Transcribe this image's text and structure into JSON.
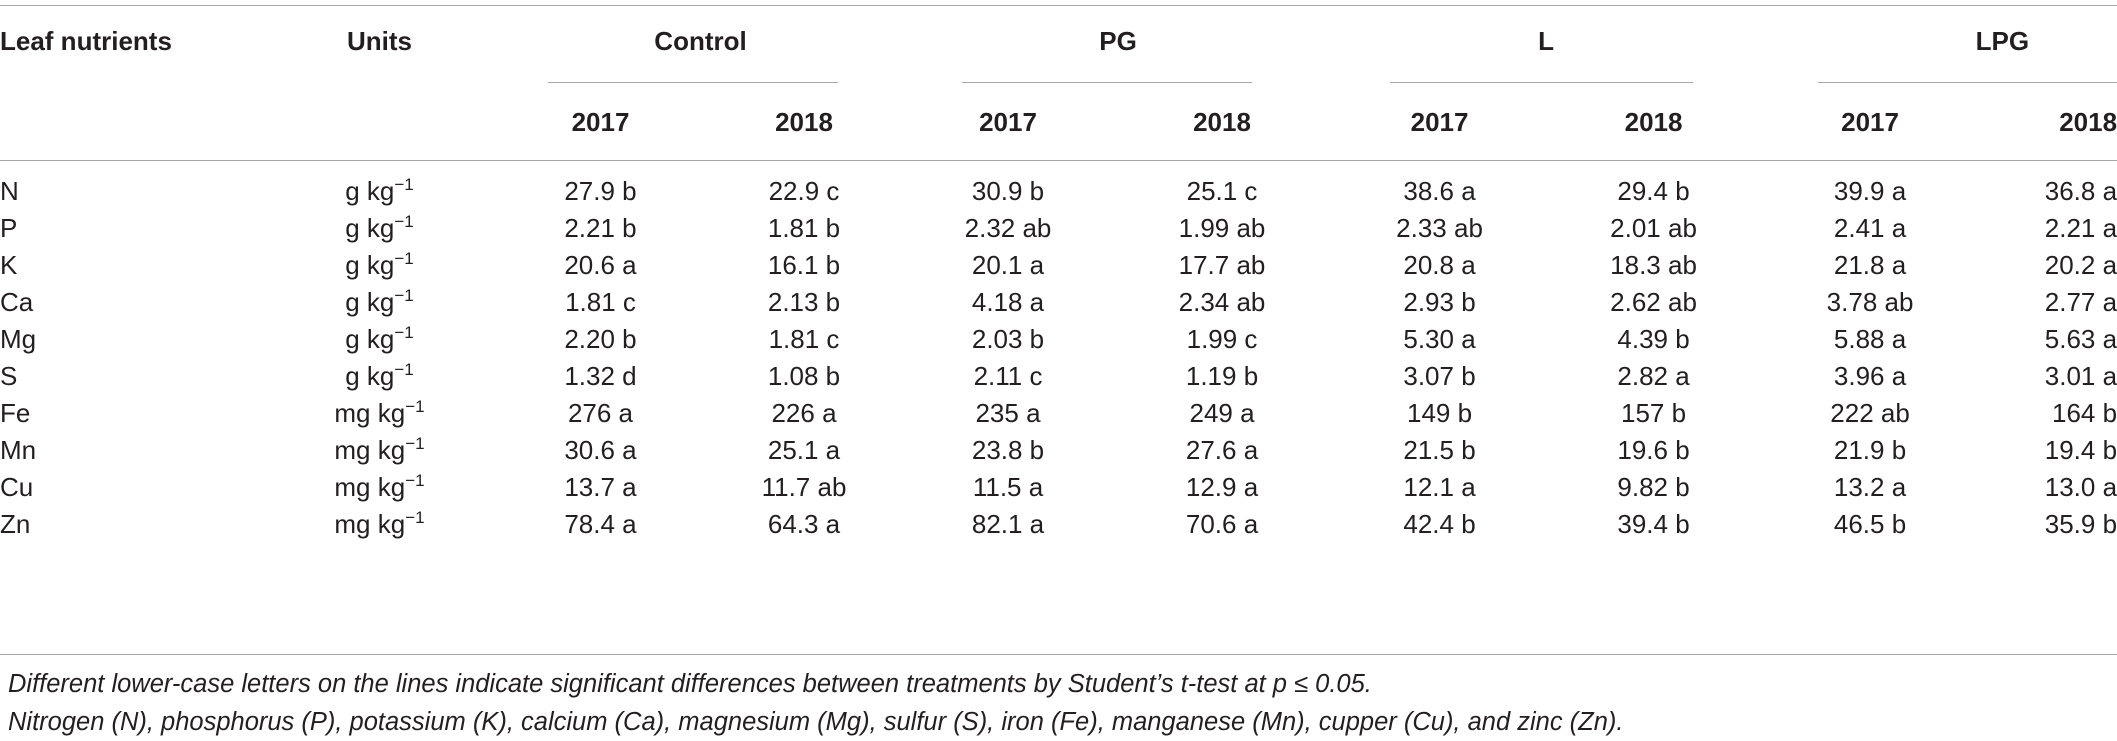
{
  "header": {
    "leaf_nutrients": "Leaf nutrients",
    "units": "Units",
    "groups": [
      "Control",
      "PG",
      "L",
      "LPG"
    ],
    "years": [
      "2017",
      "2018",
      "2017",
      "2018",
      "2017",
      "2018",
      "2017",
      "2018"
    ]
  },
  "rows": [
    {
      "nutrient": "N",
      "unit": "g kg",
      "exp": "−1",
      "values": [
        "27.9 b",
        "22.9 c",
        "30.9 b",
        "25.1 c",
        "38.6 a",
        "29.4 b",
        "39.9 a",
        "36.8 a"
      ]
    },
    {
      "nutrient": "P",
      "unit": "g kg",
      "exp": "−1",
      "values": [
        "2.21 b",
        "1.81 b",
        "2.32 ab",
        "1.99 ab",
        "2.33 ab",
        "2.01 ab",
        "2.41 a",
        "2.21 a"
      ]
    },
    {
      "nutrient": "K",
      "unit": "g kg",
      "exp": "−1",
      "values": [
        "20.6 a",
        "16.1 b",
        "20.1 a",
        "17.7 ab",
        "20.8 a",
        "18.3 ab",
        "21.8 a",
        "20.2 a"
      ]
    },
    {
      "nutrient": "Ca",
      "unit": "g kg",
      "exp": "−1",
      "values": [
        "1.81 c",
        "2.13 b",
        "4.18 a",
        "2.34 ab",
        "2.93 b",
        "2.62 ab",
        "3.78 ab",
        "2.77 a"
      ]
    },
    {
      "nutrient": "Mg",
      "unit": "g kg",
      "exp": "−1",
      "values": [
        "2.20 b",
        "1.81 c",
        "2.03 b",
        "1.99 c",
        "5.30 a",
        "4.39 b",
        "5.88 a",
        "5.63 a"
      ]
    },
    {
      "nutrient": "S",
      "unit": "g kg",
      "exp": "−1",
      "values": [
        "1.32 d",
        "1.08 b",
        "2.11 c",
        "1.19 b",
        "3.07 b",
        "2.82 a",
        "3.96 a",
        "3.01 a"
      ]
    },
    {
      "nutrient": "Fe",
      "unit": "mg kg",
      "exp": "−1",
      "values": [
        "276 a",
        "226 a",
        "235 a",
        "249 a",
        "149 b",
        "157 b",
        "222 ab",
        "164 b"
      ]
    },
    {
      "nutrient": "Mn",
      "unit": "mg kg",
      "exp": "−1",
      "values": [
        "30.6 a",
        "25.1 a",
        "23.8 b",
        "27.6 a",
        "21.5 b",
        "19.6 b",
        "21.9 b",
        "19.4 b"
      ]
    },
    {
      "nutrient": "Cu",
      "unit": "mg kg",
      "exp": "−1",
      "values": [
        "13.7 a",
        "11.7 ab",
        "11.5 a",
        "12.9 a",
        "12.1 a",
        "9.82 b",
        "13.2 a",
        "13.0 a"
      ]
    },
    {
      "nutrient": "Zn",
      "unit": "mg kg",
      "exp": "−1",
      "values": [
        "78.4 a",
        "64.3 a",
        "82.1 a",
        "70.6 a",
        "42.4 b",
        "39.4 b",
        "46.5 b",
        "35.9 b"
      ]
    }
  ],
  "notes": [
    "Different lower-case letters on the lines indicate significant differences between treatments by Student’s t-test at p ≤ 0.05.",
    "Nitrogen (N), phosphorus (P), potassium (K), calcium (Ca), magnesium (Mg), sulfur (S), iron (Fe), manganese (Mn), cupper (Cu), and zinc (Zn)."
  ]
}
